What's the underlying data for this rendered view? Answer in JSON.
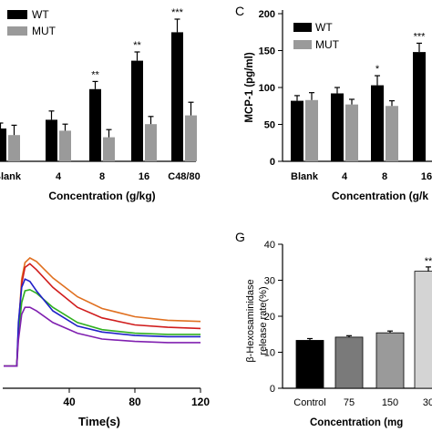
{
  "chart_data": [
    {
      "panel": "",
      "type": "bar",
      "categories": [
        "Blank",
        "4",
        "8",
        "16",
        "C48/80"
      ],
      "series": [
        {
          "name": "WT",
          "color": "#000000",
          "values": [
            1.5,
            1.9,
            3.3,
            4.6,
            5.9
          ],
          "errors": [
            0.25,
            0.4,
            0.35,
            0.4,
            0.6
          ],
          "significance": [
            "",
            "",
            "**",
            "**",
            "***"
          ]
        },
        {
          "name": "MUT",
          "color": "#9a9a9a",
          "values": [
            1.2,
            1.4,
            1.1,
            1.7,
            2.1
          ],
          "errors": [
            0.45,
            0.3,
            0.35,
            0.35,
            0.6
          ],
          "significance": [
            "",
            "",
            "",
            "",
            ""
          ]
        }
      ],
      "xlabel": "Concentration (g/kg)",
      "ylabel": "",
      "ylim": [
        0,
        7
      ]
    },
    {
      "panel": "C",
      "type": "bar",
      "categories": [
        "Blank",
        "4",
        "8",
        "16"
      ],
      "series": [
        {
          "name": "WT",
          "color": "#000000",
          "values": [
            82,
            92,
            103,
            148
          ],
          "errors": [
            7,
            8,
            13,
            12
          ],
          "significance": [
            "",
            "",
            "*",
            "***"
          ]
        },
        {
          "name": "MUT",
          "color": "#9a9a9a",
          "values": [
            83,
            77,
            75,
            null
          ],
          "errors": [
            10,
            7,
            7,
            null
          ],
          "significance": [
            "",
            "",
            "",
            ""
          ]
        }
      ],
      "xlabel": "Concentration (g/k",
      "ylabel": "MCP-1 (pg/ml)",
      "yticks": [
        0,
        50,
        100,
        150,
        200
      ],
      "ylim": [
        0,
        200
      ]
    },
    {
      "panel": "",
      "type": "line",
      "xlabel": "Time(s)",
      "ylabel": "",
      "xticks": [
        40,
        80,
        120
      ],
      "xlim": [
        0,
        120
      ],
      "ylim": [
        0,
        1
      ],
      "series": [
        {
          "name": "",
          "color": "#e07020",
          "x": [
            0,
            8,
            9,
            11,
            13,
            16,
            20,
            30,
            45,
            60,
            80,
            100,
            120
          ],
          "y": [
            0.08,
            0.08,
            0.4,
            0.82,
            0.96,
            1.0,
            0.97,
            0.83,
            0.67,
            0.57,
            0.5,
            0.47,
            0.46
          ]
        },
        {
          "name": "",
          "color": "#d01c1c",
          "x": [
            0,
            8,
            9,
            11,
            13,
            16,
            20,
            30,
            45,
            60,
            80,
            100,
            120
          ],
          "y": [
            0.08,
            0.08,
            0.4,
            0.78,
            0.92,
            0.95,
            0.9,
            0.75,
            0.58,
            0.49,
            0.43,
            0.41,
            0.4
          ]
        },
        {
          "name": "",
          "color": "#30b020",
          "x": [
            0,
            8,
            9,
            11,
            13,
            16,
            20,
            30,
            45,
            60,
            80,
            100,
            120
          ],
          "y": [
            0.08,
            0.08,
            0.35,
            0.62,
            0.72,
            0.73,
            0.7,
            0.58,
            0.45,
            0.39,
            0.36,
            0.35,
            0.35
          ]
        },
        {
          "name": "",
          "color": "#2020c8",
          "x": [
            0,
            8,
            9,
            11,
            13,
            16,
            20,
            30,
            45,
            60,
            80,
            100,
            120
          ],
          "y": [
            0.08,
            0.08,
            0.45,
            0.75,
            0.82,
            0.8,
            0.72,
            0.55,
            0.42,
            0.37,
            0.34,
            0.33,
            0.33
          ]
        },
        {
          "name": "",
          "color": "#8020b0",
          "x": [
            0,
            8,
            9,
            11,
            13,
            16,
            20,
            30,
            45,
            60,
            80,
            100,
            120
          ],
          "y": [
            0.08,
            0.08,
            0.3,
            0.52,
            0.58,
            0.58,
            0.55,
            0.45,
            0.36,
            0.31,
            0.29,
            0.28,
            0.28
          ]
        }
      ]
    },
    {
      "panel": "G",
      "type": "bar",
      "categories": [
        "Control",
        "75",
        "150",
        "30"
      ],
      "values": [
        13.3,
        14.2,
        15.4,
        32.5
      ],
      "errors": [
        0.5,
        0.4,
        0.5,
        1.2
      ],
      "colors": [
        "#000000",
        "#7a7a7a",
        "#9a9a9a",
        "#d4d4d4"
      ],
      "significance": [
        "",
        "",
        "",
        "**"
      ],
      "xlabel": "Concentration (mg",
      "ylabel": [
        "β-Hexosaminidase",
        "release rate(%)"
      ],
      "yticks": [
        0,
        10,
        20,
        30,
        40
      ],
      "ylim": [
        0,
        40
      ]
    }
  ]
}
